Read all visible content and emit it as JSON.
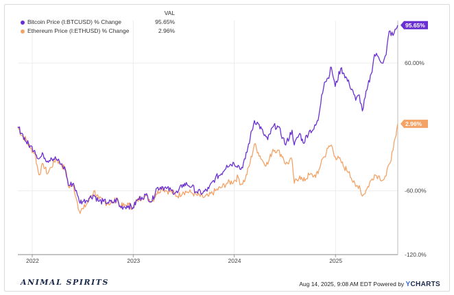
{
  "legend": {
    "header": "VAL"
  },
  "footer": {
    "logo_text": "ANIMAL SPIRITS",
    "timestamp": "Aug 14, 2025, 9:08 AM EDT",
    "powered_by": "Powered by",
    "brand_y": "Y",
    "brand_rest": "CHARTS"
  },
  "chart_data": {
    "type": "line",
    "x_ticks": [
      "2022",
      "2023",
      "2024",
      "2025"
    ],
    "y_ticks": [
      "60.00%",
      "-60.00%",
      "-120.0%"
    ],
    "ylim": [
      -120,
      100
    ],
    "xlim": [
      "2021-11-10",
      "2025-08-14"
    ],
    "grid": true,
    "legend_position": "top-left",
    "series": [
      {
        "name": "Bitcoin Price (I:BTCUSD) % Change",
        "value_label": "95.65%",
        "color": "#6a2fd1",
        "points": [
          [
            "2021-11-10",
            0
          ],
          [
            "2021-11-25",
            -6
          ],
          [
            "2021-12-10",
            -14
          ],
          [
            "2021-12-25",
            -18
          ],
          [
            "2022-01-10",
            -22
          ],
          [
            "2022-01-25",
            -30
          ],
          [
            "2022-02-10",
            -26
          ],
          [
            "2022-02-25",
            -32
          ],
          [
            "2022-03-10",
            -29
          ],
          [
            "2022-03-28",
            -30
          ],
          [
            "2022-04-15",
            -35
          ],
          [
            "2022-05-01",
            -40
          ],
          [
            "2022-05-12",
            -55
          ],
          [
            "2022-05-30",
            -53
          ],
          [
            "2022-06-13",
            -64
          ],
          [
            "2022-06-20",
            -70
          ],
          [
            "2022-07-05",
            -70
          ],
          [
            "2022-07-25",
            -67
          ],
          [
            "2022-08-12",
            -64
          ],
          [
            "2022-08-30",
            -70
          ],
          [
            "2022-09-15",
            -70
          ],
          [
            "2022-10-01",
            -71
          ],
          [
            "2022-10-20",
            -71
          ],
          [
            "2022-11-05",
            -68
          ],
          [
            "2022-11-12",
            -75
          ],
          [
            "2022-11-30",
            -75
          ],
          [
            "2022-12-15",
            -74
          ],
          [
            "2022-12-31",
            -76
          ],
          [
            "2023-01-15",
            -69
          ],
          [
            "2023-02-01",
            -66
          ],
          [
            "2023-02-15",
            -64
          ],
          [
            "2023-03-10",
            -70
          ],
          [
            "2023-03-25",
            -58
          ],
          [
            "2023-04-15",
            -56
          ],
          [
            "2023-05-01",
            -58
          ],
          [
            "2023-05-20",
            -60
          ],
          [
            "2023-06-10",
            -62
          ],
          [
            "2023-06-30",
            -54
          ],
          [
            "2023-07-15",
            -54
          ],
          [
            "2023-08-01",
            -56
          ],
          [
            "2023-08-18",
            -61
          ],
          [
            "2023-09-10",
            -62
          ],
          [
            "2023-10-01",
            -58
          ],
          [
            "2023-10-25",
            -48
          ],
          [
            "2023-11-15",
            -44
          ],
          [
            "2023-12-05",
            -36
          ],
          [
            "2023-12-31",
            -34
          ],
          [
            "2024-01-15",
            -36
          ],
          [
            "2024-01-25",
            -40
          ],
          [
            "2024-02-10",
            -30
          ],
          [
            "2024-02-28",
            -10
          ],
          [
            "2024-03-14",
            6
          ],
          [
            "2024-03-28",
            3
          ],
          [
            "2024-04-15",
            -6
          ],
          [
            "2024-05-01",
            -12
          ],
          [
            "2024-05-20",
            0
          ],
          [
            "2024-06-05",
            1
          ],
          [
            "2024-06-25",
            -10
          ],
          [
            "2024-07-05",
            -17
          ],
          [
            "2024-07-28",
            -3
          ],
          [
            "2024-08-05",
            -17
          ],
          [
            "2024-08-25",
            -6
          ],
          [
            "2024-09-06",
            -15
          ],
          [
            "2024-09-28",
            -4
          ],
          [
            "2024-10-15",
            -2
          ],
          [
            "2024-10-30",
            6
          ],
          [
            "2024-11-12",
            30
          ],
          [
            "2024-11-22",
            42
          ],
          [
            "2024-12-05",
            46
          ],
          [
            "2024-12-17",
            56
          ],
          [
            "2024-12-31",
            38
          ],
          [
            "2025-01-20",
            55
          ],
          [
            "2025-02-01",
            50
          ],
          [
            "2025-02-20",
            40
          ],
          [
            "2025-03-05",
            34
          ],
          [
            "2025-03-15",
            25
          ],
          [
            "2025-03-28",
            30
          ],
          [
            "2025-04-08",
            15
          ],
          [
            "2025-04-25",
            35
          ],
          [
            "2025-05-10",
            50
          ],
          [
            "2025-05-22",
            68
          ],
          [
            "2025-06-05",
            66
          ],
          [
            "2025-06-22",
            60
          ],
          [
            "2025-07-03",
            68
          ],
          [
            "2025-07-14",
            90
          ],
          [
            "2025-07-28",
            86
          ],
          [
            "2025-08-08",
            92
          ],
          [
            "2025-08-14",
            95.65
          ]
        ]
      },
      {
        "name": "Ethereum Price (I:ETHUSD) % Change",
        "value_label": "2.96%",
        "color": "#f4a366",
        "points": [
          [
            "2021-11-10",
            0
          ],
          [
            "2021-11-25",
            -8
          ],
          [
            "2021-12-10",
            -12
          ],
          [
            "2021-12-25",
            -20
          ],
          [
            "2022-01-10",
            -24
          ],
          [
            "2022-01-25",
            -45
          ],
          [
            "2022-02-10",
            -35
          ],
          [
            "2022-02-25",
            -44
          ],
          [
            "2022-03-10",
            -38
          ],
          [
            "2022-03-28",
            -30
          ],
          [
            "2022-04-15",
            -35
          ],
          [
            "2022-05-01",
            -40
          ],
          [
            "2022-05-12",
            -56
          ],
          [
            "2022-05-30",
            -55
          ],
          [
            "2022-06-13",
            -71
          ],
          [
            "2022-06-20",
            -79
          ],
          [
            "2022-07-05",
            -77
          ],
          [
            "2022-07-25",
            -69
          ],
          [
            "2022-08-12",
            -60
          ],
          [
            "2022-08-30",
            -68
          ],
          [
            "2022-09-15",
            -70
          ],
          [
            "2022-10-01",
            -72
          ],
          [
            "2022-10-20",
            -71
          ],
          [
            "2022-11-05",
            -67
          ],
          [
            "2022-11-12",
            -74
          ],
          [
            "2022-11-30",
            -74
          ],
          [
            "2022-12-15",
            -73
          ],
          [
            "2022-12-31",
            -76
          ],
          [
            "2023-01-15",
            -69
          ],
          [
            "2023-02-01",
            -66
          ],
          [
            "2023-02-15",
            -65
          ],
          [
            "2023-03-10",
            -70
          ],
          [
            "2023-03-25",
            -63
          ],
          [
            "2023-04-15",
            -57
          ],
          [
            "2023-05-01",
            -60
          ],
          [
            "2023-05-20",
            -61
          ],
          [
            "2023-06-10",
            -65
          ],
          [
            "2023-06-30",
            -61
          ],
          [
            "2023-07-15",
            -61
          ],
          [
            "2023-08-01",
            -62
          ],
          [
            "2023-08-18",
            -64
          ],
          [
            "2023-09-10",
            -66
          ],
          [
            "2023-10-01",
            -65
          ],
          [
            "2023-10-25",
            -60
          ],
          [
            "2023-11-15",
            -57
          ],
          [
            "2023-12-05",
            -53
          ],
          [
            "2023-12-31",
            -51
          ],
          [
            "2024-01-15",
            -47
          ],
          [
            "2024-01-25",
            -54
          ],
          [
            "2024-02-10",
            -49
          ],
          [
            "2024-02-28",
            -33
          ],
          [
            "2024-03-14",
            -16
          ],
          [
            "2024-03-28",
            -24
          ],
          [
            "2024-04-15",
            -33
          ],
          [
            "2024-05-01",
            -35
          ],
          [
            "2024-05-20",
            -21
          ],
          [
            "2024-06-05",
            -22
          ],
          [
            "2024-06-25",
            -28
          ],
          [
            "2024-07-05",
            -35
          ],
          [
            "2024-07-28",
            -31
          ],
          [
            "2024-08-05",
            -53
          ],
          [
            "2024-08-25",
            -46
          ],
          [
            "2024-09-06",
            -51
          ],
          [
            "2024-09-28",
            -45
          ],
          [
            "2024-10-15",
            -46
          ],
          [
            "2024-10-30",
            -44
          ],
          [
            "2024-11-12",
            -31
          ],
          [
            "2024-11-22",
            -28
          ],
          [
            "2024-12-05",
            -20
          ],
          [
            "2024-12-17",
            -17
          ],
          [
            "2024-12-31",
            -28
          ],
          [
            "2025-01-20",
            -32
          ],
          [
            "2025-02-01",
            -38
          ],
          [
            "2025-02-20",
            -42
          ],
          [
            "2025-03-05",
            -52
          ],
          [
            "2025-03-15",
            -56
          ],
          [
            "2025-03-28",
            -55
          ],
          [
            "2025-04-08",
            -65
          ],
          [
            "2025-04-25",
            -58
          ],
          [
            "2025-05-10",
            -50
          ],
          [
            "2025-05-22",
            -45
          ],
          [
            "2025-06-05",
            -46
          ],
          [
            "2025-06-22",
            -50
          ],
          [
            "2025-07-03",
            -46
          ],
          [
            "2025-07-14",
            -35
          ],
          [
            "2025-07-28",
            -22
          ],
          [
            "2025-08-08",
            -8
          ],
          [
            "2025-08-14",
            2.96
          ]
        ]
      }
    ]
  }
}
